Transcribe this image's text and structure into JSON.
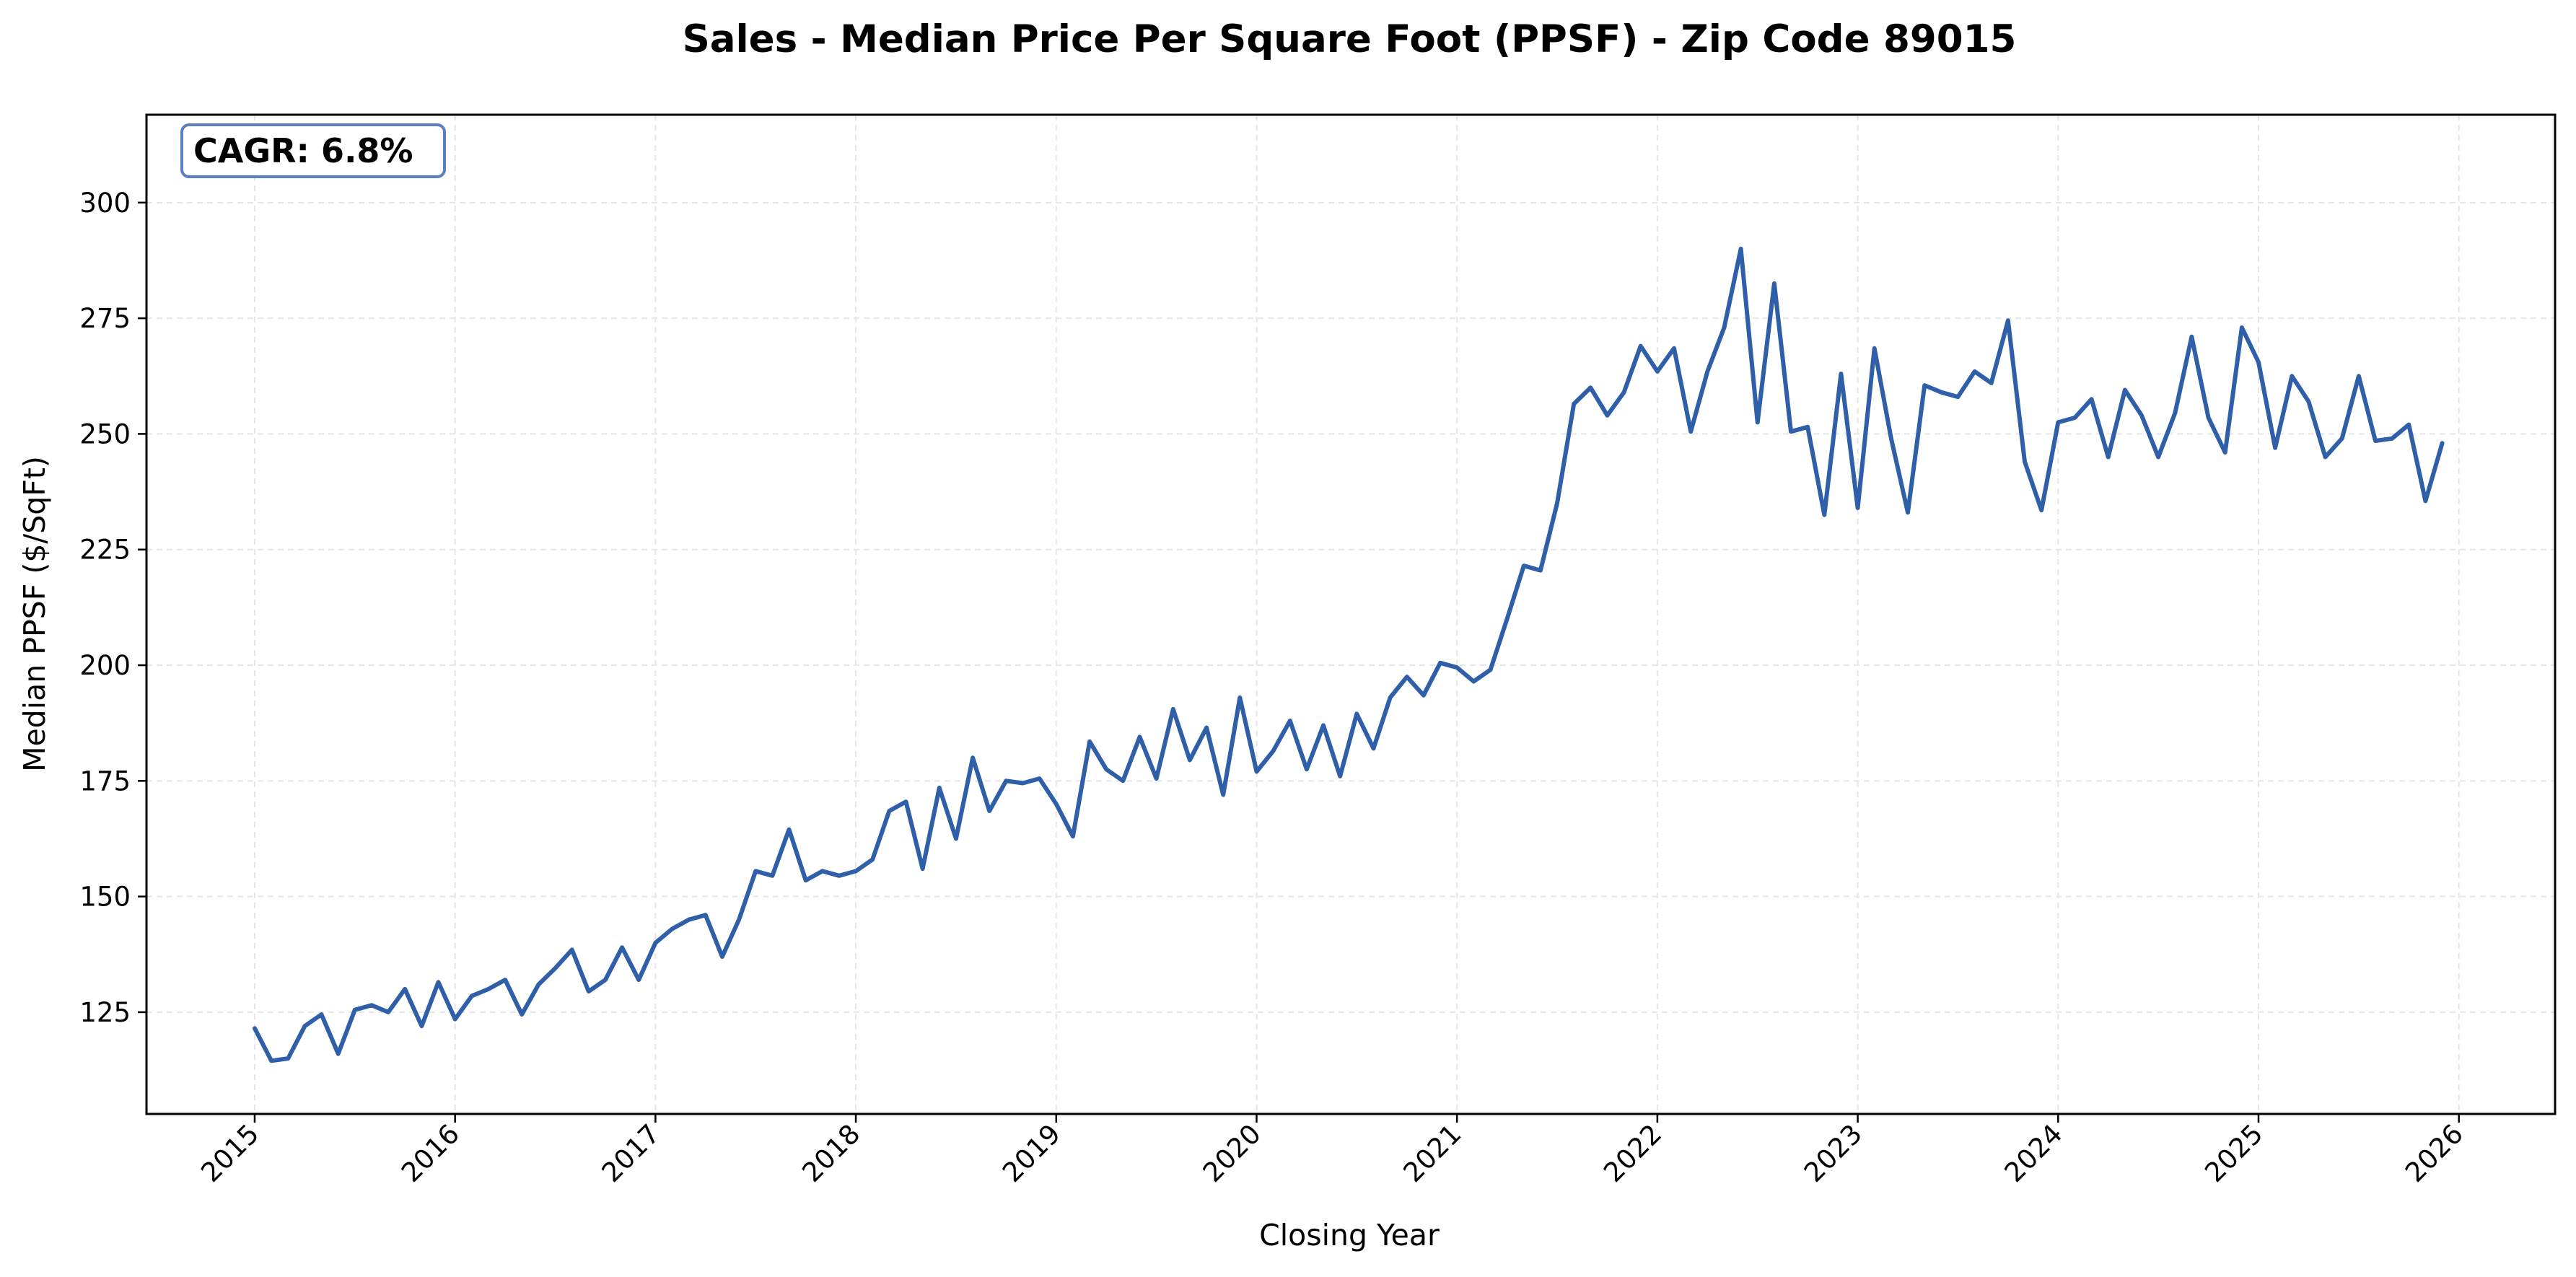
{
  "chart_data": {
    "type": "line",
    "title": "Sales - Median Price Per Square Foot (PPSF) - Zip Code 89015",
    "xlabel": "Closing Year",
    "ylabel": "Median PPSF ($/SqFt)",
    "xlim": [
      2014.46,
      2026.48
    ],
    "ylim": [
      103,
      319
    ],
    "grid": true,
    "x_ticks": [
      "2015",
      "2016",
      "2017",
      "2018",
      "2019",
      "2020",
      "2021",
      "2022",
      "2023",
      "2024",
      "2025",
      "2026"
    ],
    "y_ticks": [
      "125",
      "150",
      "175",
      "200",
      "225",
      "250",
      "275",
      "300"
    ],
    "annotation": "CAGR: 6.8%",
    "series": [
      {
        "name": "Median PPSF",
        "color": "#2f5fa8",
        "start": "2015-01",
        "frequency": "monthly",
        "values": [
          121.5,
          114.5,
          115,
          122,
          124.5,
          116,
          125.5,
          126.5,
          125,
          130,
          122,
          131.5,
          123.5,
          128.5,
          130,
          132,
          124.5,
          131,
          134.5,
          138.5,
          129.5,
          132,
          139,
          132,
          140,
          143,
          145,
          146,
          137,
          145,
          155.5,
          154.5,
          164.5,
          153.5,
          155.5,
          154.5,
          155.5,
          158,
          168.5,
          170.5,
          156,
          173.5,
          162.5,
          180,
          168.5,
          175,
          174.5,
          175.5,
          170,
          163,
          183.5,
          177.5,
          175,
          184.5,
          175.5,
          190.5,
          179.5,
          186.5,
          172,
          193,
          177,
          181.5,
          188,
          177.5,
          187,
          176,
          189.5,
          182,
          193,
          197.5,
          193.5,
          200.5,
          199.5,
          196.5,
          199,
          210,
          221.5,
          220.5,
          235,
          256.5,
          260,
          254,
          259,
          269,
          263.5,
          268.5,
          250.5,
          263.5,
          273,
          290,
          252.5,
          282.5,
          250.5,
          251.5,
          232.5,
          263,
          234,
          268.5,
          249,
          233,
          260.5,
          259,
          258,
          263.5,
          261,
          274.5,
          244,
          233.5,
          252.5,
          253.5,
          257.5,
          245,
          259.5,
          254,
          245,
          254.5,
          271,
          253.5,
          246,
          273,
          265.5,
          247,
          262.5,
          257,
          245,
          249,
          262.5,
          248.5,
          249,
          252,
          235.5,
          248
        ]
      }
    ]
  },
  "colors": {
    "line": "#2f5fa8",
    "annotation_border": "#5b7fbf",
    "grid": "#e6e6e6"
  }
}
